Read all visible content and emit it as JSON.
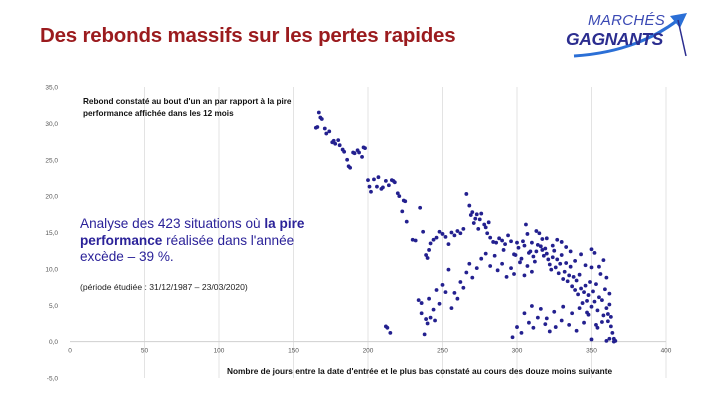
{
  "title": "Des rebonds massifs sur les pertes rapides",
  "logo": {
    "line1": "MARCHÉS",
    "line2": "GAGNANTS"
  },
  "annotations": {
    "y_description": "Rebond constaté au bout d'un an par rapport à la pire performance affichée dans les 12 mois",
    "analysis_part1": "Analyse des 423 situations où ",
    "analysis_bold": "la pire performance",
    "analysis_part2": " réalisée dans l'année excède – 39 %.",
    "period": "(période étudiée : 31/12/1987 – 23/03/2020)"
  },
  "colors": {
    "title": "#9b1b1e",
    "points": "#23208f",
    "analysis_text": "#2b2299",
    "logo": "#2b2d8f"
  },
  "chart_data": {
    "type": "scatter",
    "title": "",
    "xlabel": "Nombre de jours entre la date d'entrée et le plus bas constaté au cours des douze moins suivante",
    "ylabel": "",
    "xlim": [
      0,
      400
    ],
    "ylim": [
      -5,
      35
    ],
    "x_ticks": [
      "0",
      "50",
      "100",
      "150",
      "200",
      "250",
      "300",
      "350",
      "400"
    ],
    "y_ticks": [
      "-5,0",
      "0,0",
      "5,0",
      "10,0",
      "15,0",
      "20,0",
      "25,0",
      "30,0",
      "35,0"
    ],
    "grid": "vertical",
    "series": [
      {
        "points": [
          [
            165,
            29.4
          ],
          [
            166,
            29.5
          ],
          [
            167,
            31.5
          ],
          [
            168,
            30.8
          ],
          [
            169,
            30.6
          ],
          [
            171,
            29.3
          ],
          [
            172,
            28.6
          ],
          [
            174,
            28.9
          ],
          [
            176,
            27.4
          ],
          [
            177,
            27.6
          ],
          [
            178,
            27.2
          ],
          [
            180,
            27.7
          ],
          [
            181,
            27.0
          ],
          [
            183,
            26.4
          ],
          [
            184,
            26.1
          ],
          [
            186,
            25.0
          ],
          [
            187,
            24.1
          ],
          [
            188,
            23.9
          ],
          [
            190,
            26.0
          ],
          [
            191,
            25.9
          ],
          [
            193,
            26.3
          ],
          [
            194,
            26.0
          ],
          [
            196,
            25.4
          ],
          [
            197,
            26.7
          ],
          [
            198,
            26.6
          ],
          [
            200,
            22.2
          ],
          [
            201,
            21.3
          ],
          [
            202,
            20.6
          ],
          [
            204,
            22.3
          ],
          [
            206,
            21.3
          ],
          [
            207,
            22.6
          ],
          [
            209,
            21.0
          ],
          [
            210,
            21.2
          ],
          [
            212,
            22.1
          ],
          [
            214,
            21.5
          ],
          [
            216,
            22.2
          ],
          [
            217,
            22.1
          ],
          [
            218,
            21.9
          ],
          [
            220,
            20.4
          ],
          [
            221,
            20.0
          ],
          [
            223,
            17.9
          ],
          [
            224,
            19.4
          ],
          [
            225,
            19.3
          ],
          [
            226,
            16.5
          ],
          [
            230,
            14.0
          ],
          [
            232,
            13.9
          ],
          [
            235,
            18.4
          ],
          [
            237,
            15.1
          ],
          [
            239,
            11.9
          ],
          [
            240,
            11.5
          ],
          [
            241,
            12.6
          ],
          [
            242,
            13.5
          ],
          [
            244,
            14.0
          ],
          [
            246,
            14.3
          ],
          [
            248,
            15.1
          ],
          [
            250,
            14.8
          ],
          [
            252,
            14.4
          ],
          [
            254,
            13.4
          ],
          [
            256,
            15.0
          ],
          [
            258,
            14.6
          ],
          [
            260,
            15.2
          ],
          [
            262,
            14.9
          ],
          [
            264,
            15.5
          ],
          [
            266,
            20.3
          ],
          [
            268,
            18.7
          ],
          [
            269,
            17.4
          ],
          [
            270,
            17.8
          ],
          [
            271,
            16.3
          ],
          [
            272,
            16.9
          ],
          [
            273,
            17.5
          ],
          [
            274,
            15.5
          ],
          [
            275,
            16.8
          ],
          [
            276,
            17.6
          ],
          [
            278,
            16.1
          ],
          [
            279,
            15.7
          ],
          [
            280,
            14.9
          ],
          [
            281,
            16.4
          ],
          [
            282,
            14.3
          ],
          [
            284,
            13.7
          ],
          [
            286,
            13.6
          ],
          [
            288,
            14.2
          ],
          [
            290,
            13.9
          ],
          [
            291,
            12.6
          ],
          [
            292,
            13.4
          ],
          [
            294,
            14.6
          ],
          [
            296,
            13.8
          ],
          [
            298,
            12.0
          ],
          [
            299,
            11.9
          ],
          [
            300,
            13.6
          ],
          [
            301,
            12.9
          ],
          [
            303,
            11.4
          ],
          [
            304,
            13.8
          ],
          [
            305,
            13.2
          ],
          [
            306,
            16.1
          ],
          [
            307,
            14.8
          ],
          [
            308,
            12.2
          ],
          [
            309,
            12.4
          ],
          [
            310,
            13.6
          ],
          [
            311,
            11.7
          ],
          [
            312,
            11.0
          ],
          [
            313,
            12.4
          ],
          [
            314,
            13.3
          ],
          [
            315,
            14.9
          ],
          [
            316,
            13.1
          ],
          [
            317,
            12.6
          ],
          [
            318,
            11.8
          ],
          [
            319,
            12.8
          ],
          [
            320,
            14.2
          ],
          [
            321,
            11.3
          ],
          [
            322,
            10.6
          ],
          [
            323,
            9.9
          ],
          [
            324,
            11.6
          ],
          [
            325,
            12.5
          ],
          [
            326,
            10.2
          ],
          [
            327,
            11.3
          ],
          [
            328,
            9.4
          ],
          [
            329,
            10.7
          ],
          [
            330,
            11.9
          ],
          [
            331,
            8.6
          ],
          [
            332,
            9.6
          ],
          [
            333,
            10.8
          ],
          [
            334,
            8.3
          ],
          [
            335,
            9.1
          ],
          [
            336,
            10.3
          ],
          [
            337,
            7.6
          ],
          [
            338,
            8.9
          ],
          [
            339,
            7.1
          ],
          [
            340,
            8.4
          ],
          [
            341,
            6.5
          ],
          [
            342,
            9.2
          ],
          [
            343,
            7.3
          ],
          [
            344,
            5.3
          ],
          [
            345,
            6.8
          ],
          [
            346,
            7.7
          ],
          [
            347,
            5.6
          ],
          [
            348,
            6.4
          ],
          [
            349,
            8.2
          ],
          [
            350,
            4.8
          ],
          [
            351,
            6.9
          ],
          [
            352,
            5.5
          ],
          [
            353,
            7.9
          ],
          [
            354,
            4.3
          ],
          [
            355,
            6.1
          ],
          [
            356,
            9.3
          ],
          [
            357,
            5.7
          ],
          [
            358,
            3.6
          ],
          [
            359,
            7.2
          ],
          [
            360,
            4.6
          ],
          [
            361,
            2.8
          ],
          [
            362,
            5.1
          ],
          [
            363,
            3.4
          ],
          [
            364,
            1.2
          ],
          [
            365,
            0.4
          ],
          [
            366,
            0.1
          ],
          [
            352,
            12.2
          ],
          [
            355,
            10.3
          ],
          [
            358,
            11.2
          ],
          [
            360,
            8.8
          ],
          [
            362,
            6.6
          ],
          [
            350,
            12.7
          ],
          [
            346,
            10.5
          ],
          [
            343,
            12.0
          ],
          [
            339,
            11.1
          ],
          [
            336,
            12.4
          ],
          [
            333,
            13.0
          ],
          [
            330,
            13.7
          ],
          [
            327,
            14.0
          ],
          [
            324,
            13.2
          ],
          [
            320,
            12.1
          ],
          [
            317,
            14.1
          ],
          [
            313,
            15.2
          ],
          [
            310,
            9.6
          ],
          [
            307,
            10.4
          ],
          [
            305,
            9.1
          ],
          [
            302,
            10.9
          ],
          [
            298,
            9.3
          ],
          [
            296,
            10.1
          ],
          [
            293,
            8.9
          ],
          [
            290,
            10.7
          ],
          [
            287,
            9.8
          ],
          [
            285,
            11.8
          ],
          [
            282,
            10.4
          ],
          [
            279,
            12.1
          ],
          [
            276,
            11.4
          ],
          [
            273,
            10.1
          ],
          [
            270,
            8.8
          ],
          [
            268,
            10.7
          ],
          [
            266,
            9.5
          ],
          [
            264,
            7.4
          ],
          [
            262,
            8.2
          ],
          [
            260,
            5.9
          ],
          [
            258,
            6.7
          ],
          [
            256,
            4.6
          ],
          [
            254,
            9.9
          ],
          [
            252,
            6.8
          ],
          [
            250,
            7.8
          ],
          [
            248,
            5.2
          ],
          [
            246,
            7.1
          ],
          [
            244,
            4.4
          ],
          [
            242,
            3.3
          ],
          [
            240,
            2.5
          ],
          [
            238,
            1.0
          ],
          [
            236,
            5.3
          ],
          [
            234,
            5.7
          ],
          [
            236,
            3.9
          ],
          [
            239,
            3.1
          ],
          [
            241,
            5.9
          ],
          [
            245,
            2.9
          ],
          [
            212,
            2.1
          ],
          [
            213,
            1.9
          ],
          [
            215,
            1.2
          ],
          [
            350,
            10.2
          ],
          [
            350,
            0.3
          ],
          [
            360,
            0.1
          ],
          [
            365,
            0.0
          ],
          [
            362,
            0.4
          ],
          [
            354,
            1.9
          ],
          [
            348,
            3.7
          ],
          [
            345,
            2.6
          ],
          [
            340,
            1.5
          ],
          [
            335,
            2.3
          ],
          [
            330,
            2.9
          ],
          [
            326,
            2.0
          ],
          [
            322,
            1.4
          ],
          [
            319,
            2.4
          ],
          [
            316,
            4.5
          ],
          [
            314,
            3.3
          ],
          [
            311,
            1.9
          ],
          [
            308,
            2.6
          ],
          [
            305,
            3.9
          ],
          [
            303,
            1.2
          ],
          [
            300,
            2.0
          ],
          [
            297,
            0.6
          ],
          [
            310,
            4.9
          ],
          [
            320,
            3.2
          ],
          [
            325,
            4.1
          ],
          [
            331,
            4.8
          ],
          [
            337,
            3.9
          ],
          [
            342,
            4.6
          ],
          [
            347,
            4.0
          ],
          [
            353,
            2.3
          ],
          [
            357,
            2.7
          ],
          [
            361,
            3.8
          ],
          [
            363,
            2.1
          ]
        ]
      }
    ]
  }
}
